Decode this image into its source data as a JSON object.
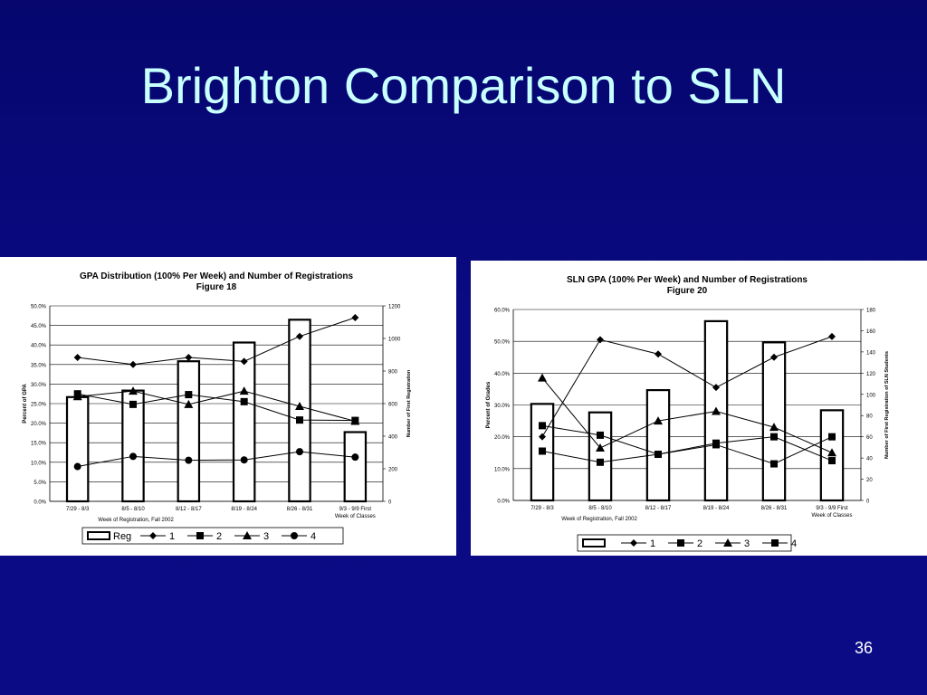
{
  "slide": {
    "title": "Brighton Comparison to SLN",
    "page_number": "36"
  },
  "colors": {
    "background": "#0a0a80",
    "title": "#c8ffff",
    "chart_bg": "#ffffff",
    "ink": "#000000"
  },
  "chart_data": [
    {
      "type": "bar+line",
      "title": "GPA Distribution (100% Per Week) and Number of Registrations",
      "subtitle": "Figure 18",
      "xlabel": "Week of Registration, Fall 2002",
      "ylabel": "Percent of GPA",
      "y2label": "Number of First Registration",
      "categories": [
        "7/29 - 8/3",
        "8/5 - 8/10",
        "8/12 - 8/17",
        "8/19 - 8/24",
        "8/26 - 8/31",
        "9/3 - 9/9 First Week of Classes"
      ],
      "ylim": [
        0,
        50
      ],
      "yticks": [
        "0.0%",
        "5.0%",
        "10.0%",
        "15.0%",
        "20.0%",
        "25.0%",
        "30.0%",
        "35.0%",
        "40.0%",
        "45.0%",
        "50.0%"
      ],
      "y2lim": [
        0,
        1200
      ],
      "y2ticks": [
        "0",
        "200",
        "400",
        "600",
        "800",
        "1000",
        "1200"
      ],
      "grid": true,
      "legend_position": "bottom",
      "bar_series": {
        "name": "Reg",
        "axis": "right",
        "values": [
          640,
          680,
          860,
          975,
          1115,
          425
        ]
      },
      "series": [
        {
          "name": "1",
          "marker": "diamond",
          "values": [
            36.8,
            35.0,
            36.8,
            35.8,
            42.2,
            47.0
          ]
        },
        {
          "name": "2",
          "marker": "square",
          "values": [
            27.5,
            24.8,
            27.3,
            25.5,
            20.8,
            20.7
          ]
        },
        {
          "name": "3",
          "marker": "triangle",
          "values": [
            26.8,
            28.2,
            24.8,
            28.2,
            24.3,
            20.5
          ]
        },
        {
          "name": "4",
          "marker": "circle",
          "values": [
            8.9,
            11.5,
            10.5,
            10.6,
            12.7,
            11.3
          ]
        }
      ]
    },
    {
      "type": "bar+line",
      "title": "SLN GPA (100% Per Week) and Number of Registrations",
      "subtitle": "Figure 20",
      "xlabel": "Week of Registration, Fall 2002",
      "ylabel": "Percent of Grades",
      "y2label": "Number of First Registration of SLN Students",
      "categories": [
        "7/29 - 8/3",
        "8/5 - 8/10",
        "8/12 - 8/17",
        "8/19 - 8/24",
        "8/26 - 8/31",
        "9/3 - 9/9 First Week of Classes"
      ],
      "ylim": [
        0,
        60
      ],
      "yticks": [
        "0.0%",
        "10.0%",
        "20.0%",
        "30.0%",
        "40.0%",
        "50.0%",
        "60.0%"
      ],
      "y2lim": [
        0,
        180
      ],
      "y2ticks": [
        "0",
        "20",
        "40",
        "60",
        "80",
        "100",
        "120",
        "140",
        "160",
        "180"
      ],
      "grid": true,
      "legend_position": "bottom",
      "bar_series": {
        "name": "",
        "axis": "right",
        "values": [
          91,
          83,
          104,
          169,
          149,
          85
        ]
      },
      "series": [
        {
          "name": "1",
          "marker": "diamond",
          "values": [
            20.0,
            50.5,
            46.0,
            35.5,
            45.0,
            51.5
          ]
        },
        {
          "name": "2",
          "marker": "square",
          "values": [
            23.5,
            20.5,
            14.5,
            18.0,
            20.0,
            12.5
          ]
        },
        {
          "name": "3",
          "marker": "triangle",
          "values": [
            38.5,
            16.5,
            25.0,
            28.0,
            23.0,
            15.0
          ]
        },
        {
          "name": "4",
          "marker": "square",
          "values": [
            15.5,
            12.0,
            14.5,
            17.5,
            11.5,
            20.0
          ]
        }
      ]
    }
  ]
}
